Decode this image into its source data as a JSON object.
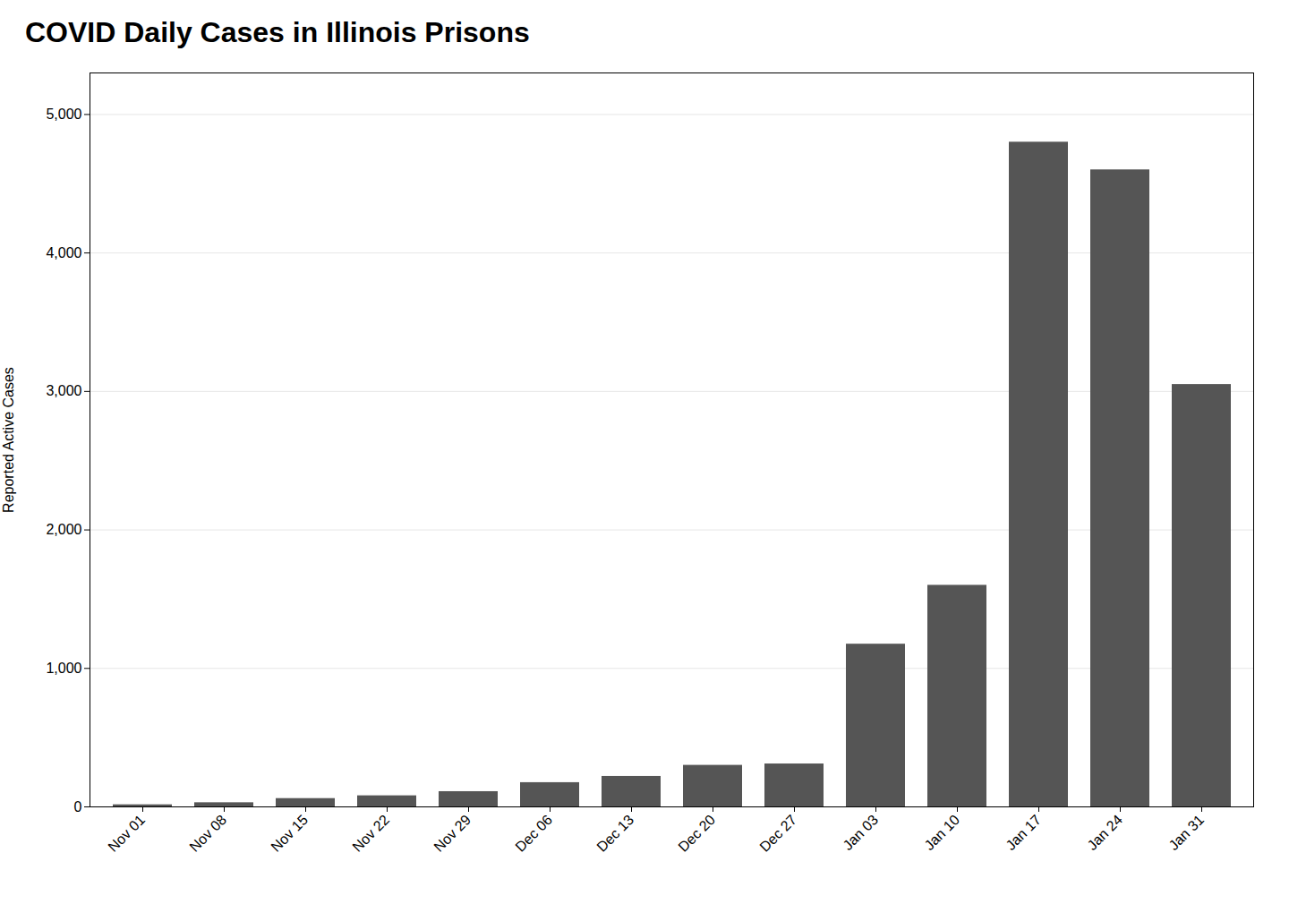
{
  "chart_data": {
    "type": "bar",
    "title": "COVID Daily Cases in Illinois Prisons",
    "ylabel": "Reported Active Cases",
    "categories": [
      "Nov 01",
      "Nov 08",
      "Nov 15",
      "Nov 22",
      "Nov 29",
      "Dec 06",
      "Dec 13",
      "Dec 20",
      "Dec 27",
      "Jan 03",
      "Jan 10",
      "Jan 17",
      "Jan 24",
      "Jan 31"
    ],
    "values": [
      15,
      30,
      60,
      80,
      110,
      175,
      220,
      300,
      310,
      1175,
      1600,
      4800,
      4600,
      3050
    ],
    "color": "#555555",
    "ylim": [
      0,
      5300
    ],
    "yticks": [
      0,
      {
        "value": 1000,
        "label": "1,000"
      },
      {
        "value": 2000,
        "label": "2,000"
      },
      {
        "value": 3000,
        "label": "3,000"
      },
      {
        "value": 4000,
        "label": "4,000"
      },
      {
        "value": 5000,
        "label": "5,000"
      }
    ],
    "grid": true
  }
}
